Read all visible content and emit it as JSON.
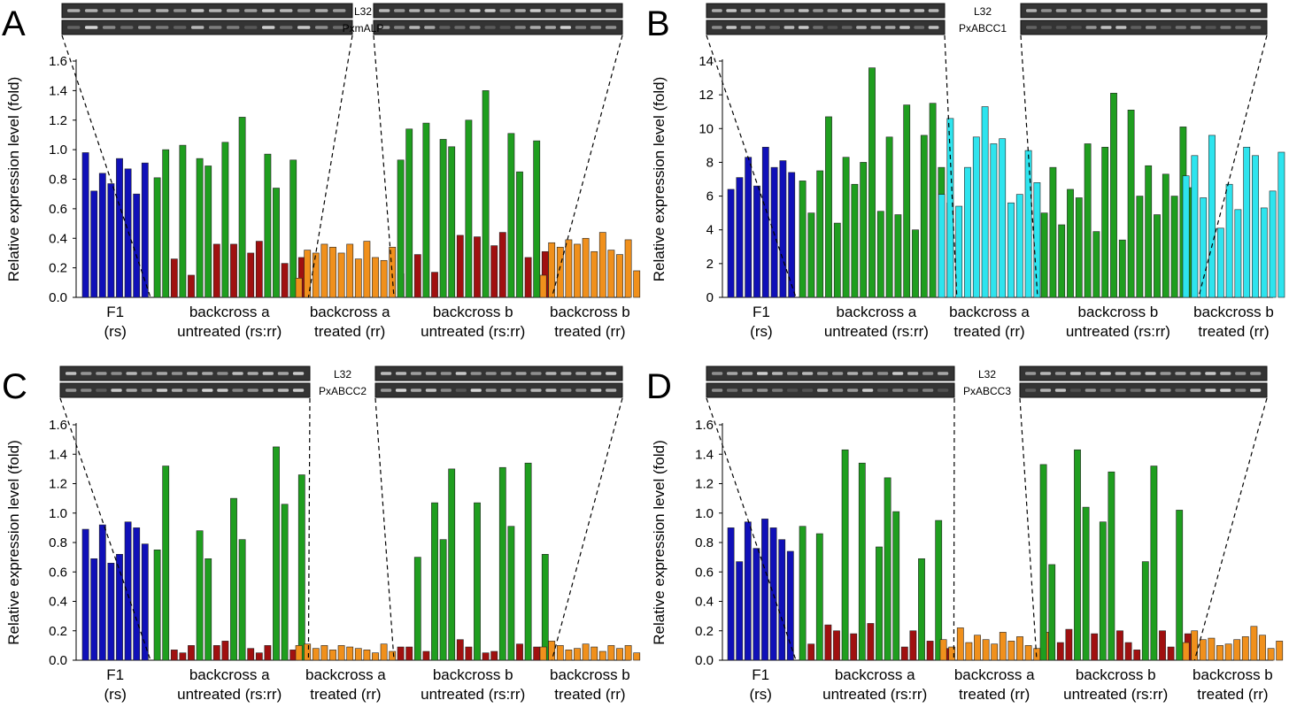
{
  "colors": {
    "F1": "#1010b8",
    "green": "#1f9e1f",
    "red": "#a01010",
    "orange": "#f0901c",
    "cyan": "#2ee4ee",
    "gel_bg": "#343434",
    "gel_band": "#d8d8d8"
  },
  "chart_data": [
    {
      "panel": "A",
      "type": "bar",
      "gene": "PxmALP",
      "ref_gene": "L32",
      "ylabel": "Relative expression level (fold)",
      "ylim": [
        0,
        1.6
      ],
      "yticks": [
        "0.0",
        "0.2",
        "0.4",
        "0.6",
        "0.8",
        "1.0",
        "1.2",
        "1.4",
        "1.6"
      ],
      "grid": false,
      "groups": [
        {
          "label": [
            "F1",
            "(rs)"
          ],
          "values": [
            0.98,
            0.72,
            0.84,
            0.77,
            0.94,
            0.87,
            0.7,
            0.91
          ],
          "colors": [
            "blue"
          ]
        },
        {
          "label": [
            "backcross a",
            "untreated (rs:rr)"
          ],
          "values": [
            0.81,
            1.0,
            0.26,
            1.03,
            0.15,
            0.94,
            0.89,
            0.36,
            1.05,
            0.36,
            1.22,
            0.3,
            0.38,
            0.97,
            0.74,
            0.23,
            0.93,
            0.27
          ],
          "colors": [
            "green",
            "green",
            "red",
            "green",
            "red",
            "green",
            "green",
            "red",
            "green",
            "red",
            "green",
            "red",
            "red",
            "green",
            "green",
            "red",
            "green",
            "red"
          ]
        },
        {
          "label": [
            "backcross a",
            "treated (rr)"
          ],
          "values": [
            0.13,
            0.32,
            0.3,
            0.36,
            0.34,
            0.3,
            0.36,
            0.26,
            0.38,
            0.27,
            0.25,
            0.34,
            0.16
          ],
          "colors": [
            "orange"
          ]
        },
        {
          "label": [
            "backcross b",
            "untreated (rs:rr)"
          ],
          "values": [
            0.93,
            1.14,
            0.29,
            1.18,
            0.17,
            1.07,
            1.02,
            0.42,
            1.2,
            0.41,
            1.4,
            0.35,
            0.44,
            1.11,
            0.85,
            0.27,
            1.06,
            0.31
          ],
          "colors": [
            "green",
            "green",
            "red",
            "green",
            "red",
            "green",
            "green",
            "red",
            "green",
            "red",
            "green",
            "red",
            "red",
            "green",
            "green",
            "red",
            "green",
            "red"
          ]
        },
        {
          "label": [
            "backcross b",
            "treated (rr)"
          ],
          "values": [
            0.15,
            0.37,
            0.34,
            0.39,
            0.36,
            0.4,
            0.31,
            0.44,
            0.32,
            0.29,
            0.39,
            0.18
          ],
          "colors": [
            "orange"
          ]
        }
      ]
    },
    {
      "panel": "B",
      "type": "bar",
      "gene": "PxABCC1",
      "ref_gene": "L32",
      "ylabel": "Relative expression level (fold)",
      "ylim": [
        0,
        14
      ],
      "yticks": [
        "0",
        "2",
        "4",
        "6",
        "8",
        "10",
        "12",
        "14"
      ],
      "grid": false,
      "groups": [
        {
          "label": [
            "F1",
            "(rs)"
          ],
          "values": [
            6.4,
            7.1,
            8.3,
            6.6,
            8.9,
            7.7,
            8.1,
            7.4
          ],
          "colors": [
            "blue"
          ]
        },
        {
          "label": [
            "backcross a",
            "untreated (rs:rr)"
          ],
          "values": [
            6.9,
            5.0,
            7.5,
            10.7,
            4.4,
            8.3,
            6.7,
            8.0,
            13.6,
            5.1,
            9.5,
            4.9,
            11.4,
            4.0,
            9.6,
            11.5,
            7.7,
            5.6
          ],
          "colors": [
            "green"
          ]
        },
        {
          "label": [
            "backcross a",
            "treated (rr)"
          ],
          "values": [
            6.1,
            10.6,
            5.4,
            7.7,
            9.5,
            11.3,
            9.1,
            9.4,
            5.6,
            6.1,
            8.7,
            6.8
          ],
          "colors": [
            "cyan"
          ]
        },
        {
          "label": [
            "backcross b",
            "untreated (rs:rr)"
          ],
          "values": [
            5.0,
            7.7,
            4.3,
            6.4,
            5.9,
            9.1,
            3.9,
            8.9,
            12.1,
            3.4,
            11.1,
            6.0,
            7.8,
            4.9,
            7.3,
            6.0,
            10.1,
            6.5
          ],
          "colors": [
            "green"
          ]
        },
        {
          "label": [
            "backcross b",
            "treated (rr)"
          ],
          "values": [
            7.2,
            8.4,
            5.9,
            9.6,
            4.1,
            6.7,
            5.2,
            8.9,
            8.4,
            5.3,
            6.3,
            8.6
          ],
          "colors": [
            "cyan"
          ]
        }
      ]
    },
    {
      "panel": "C",
      "type": "bar",
      "gene": "PxABCC2",
      "ref_gene": "L32",
      "ylabel": "Relative expression level (fold)",
      "ylim": [
        0,
        1.6
      ],
      "yticks": [
        "0.0",
        "0.2",
        "0.4",
        "0.6",
        "0.8",
        "1.0",
        "1.2",
        "1.4",
        "1.6"
      ],
      "grid": false,
      "groups": [
        {
          "label": [
            "F1",
            "(rs)"
          ],
          "values": [
            0.89,
            0.69,
            0.92,
            0.66,
            0.72,
            0.94,
            0.9,
            0.79
          ],
          "colors": [
            "blue"
          ]
        },
        {
          "label": [
            "backcross a",
            "untreated (rs:rr)"
          ],
          "values": [
            0.75,
            1.32,
            0.07,
            0.05,
            0.1,
            0.88,
            0.69,
            0.1,
            0.13,
            1.1,
            0.82,
            0.08,
            0.05,
            0.1,
            1.45,
            1.06,
            0.07,
            1.26
          ],
          "colors": [
            "green",
            "green",
            "red",
            "red",
            "red",
            "green",
            "green",
            "red",
            "red",
            "green",
            "green",
            "red",
            "red",
            "red",
            "green",
            "green",
            "red",
            "green"
          ]
        },
        {
          "label": [
            "backcross a",
            "treated (rr)"
          ],
          "values": [
            0.1,
            0.11,
            0.08,
            0.1,
            0.07,
            0.1,
            0.09,
            0.08,
            0.07,
            0.05,
            0.11,
            0.06
          ],
          "colors": [
            "orange"
          ]
        },
        {
          "label": [
            "backcross b",
            "untreated (rs:rr)"
          ],
          "values": [
            0.09,
            0.09,
            0.7,
            0.06,
            1.07,
            0.82,
            1.3,
            0.14,
            0.09,
            1.07,
            0.05,
            0.06,
            1.31,
            0.91,
            0.11,
            1.34,
            0.09,
            0.72
          ],
          "colors": [
            "red",
            "red",
            "green",
            "red",
            "green",
            "green",
            "green",
            "red",
            "red",
            "green",
            "red",
            "red",
            "green",
            "green",
            "red",
            "green",
            "red",
            "green"
          ]
        },
        {
          "label": [
            "backcross b",
            "treated (rr)"
          ],
          "values": [
            0.09,
            0.13,
            0.1,
            0.07,
            0.08,
            0.11,
            0.09,
            0.06,
            0.1,
            0.08,
            0.1,
            0.05
          ],
          "colors": [
            "orange"
          ]
        }
      ]
    },
    {
      "panel": "D",
      "type": "bar",
      "gene": "PxABCC3",
      "ref_gene": "L32",
      "ylabel": "Relative expression level (fold)",
      "ylim": [
        0,
        1.6
      ],
      "yticks": [
        "0.0",
        "0.2",
        "0.4",
        "0.6",
        "0.8",
        "1.0",
        "1.2",
        "1.4",
        "1.6"
      ],
      "grid": false,
      "groups": [
        {
          "label": [
            "F1",
            "(rs)"
          ],
          "values": [
            0.9,
            0.67,
            0.94,
            0.76,
            0.96,
            0.9,
            0.82,
            0.74
          ],
          "colors": [
            "blue"
          ]
        },
        {
          "label": [
            "backcross a",
            "untreated (rs:rr)"
          ],
          "values": [
            0.91,
            0.11,
            0.86,
            0.24,
            0.2,
            1.43,
            0.18,
            1.34,
            0.25,
            0.77,
            1.24,
            1.01,
            0.09,
            0.2,
            0.69,
            0.13,
            0.95,
            0.08
          ],
          "colors": [
            "green",
            "red",
            "green",
            "red",
            "red",
            "green",
            "red",
            "green",
            "red",
            "green",
            "green",
            "green",
            "red",
            "red",
            "green",
            "red",
            "green",
            "red"
          ]
        },
        {
          "label": [
            "backcross a",
            "treated (rr)"
          ],
          "values": [
            0.14,
            0.09,
            0.22,
            0.12,
            0.17,
            0.14,
            0.11,
            0.19,
            0.13,
            0.16,
            0.1,
            0.08,
            0.19
          ],
          "colors": [
            "orange"
          ]
        },
        {
          "label": [
            "backcross b",
            "untreated (rs:rr)"
          ],
          "values": [
            1.33,
            0.65,
            0.12,
            0.21,
            1.43,
            1.04,
            0.18,
            0.94,
            1.28,
            0.2,
            0.12,
            0.07,
            0.67,
            1.32,
            0.2,
            0.09,
            1.02,
            0.18
          ],
          "colors": [
            "green",
            "green",
            "red",
            "red",
            "green",
            "green",
            "red",
            "green",
            "green",
            "red",
            "red",
            "red",
            "green",
            "green",
            "red",
            "red",
            "green",
            "red"
          ]
        },
        {
          "label": [
            "backcross b",
            "treated (rr)"
          ],
          "values": [
            0.12,
            0.2,
            0.14,
            0.15,
            0.1,
            0.11,
            0.14,
            0.16,
            0.23,
            0.17,
            0.08,
            0.13
          ],
          "colors": [
            "orange"
          ]
        }
      ]
    }
  ]
}
